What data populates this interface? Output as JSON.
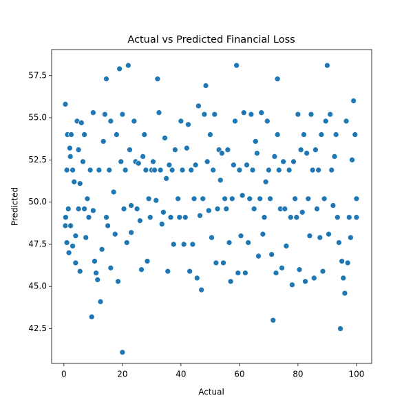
{
  "chart_data": {
    "type": "scatter",
    "title": "Actual vs Predicted Financial Loss",
    "x_label": "Actual",
    "y_label": "Predicted",
    "color": "#1f77b4",
    "xlim": [
      -4.2,
      105.2
    ],
    "ylim": [
      40.44,
      59.04
    ],
    "xticks": [
      0,
      20,
      40,
      60,
      80,
      100
    ],
    "yticks": [
      42.5,
      {
        "value": 45,
        "label": "45.0"
      },
      47.5,
      {
        "value": 50,
        "label": "50.0"
      },
      52.5,
      {
        "value": 55,
        "label": "55.0"
      },
      57.5
    ],
    "x": [
      0.5,
      0.5,
      0.6,
      1,
      1,
      1.2,
      1.5,
      1.7,
      2,
      2.2,
      2.3,
      2.5,
      3,
      3,
      3.5,
      4,
      4,
      4.5,
      5,
      5,
      5.5,
      5.5,
      6,
      6.5,
      7,
      7,
      7.5,
      8,
      8.5,
      9,
      9.5,
      10,
      10,
      10.5,
      11,
      11.5,
      12,
      12.5,
      13,
      13.5,
      14,
      14.5,
      14.5,
      15,
      15.5,
      16,
      16,
      17,
      17.5,
      18,
      18.5,
      19,
      19.5,
      20,
      20,
      20.5,
      21,
      21.5,
      22,
      22.5,
      23,
      23,
      24,
      24.5,
      25,
      25.5,
      26,
      26.5,
      27,
      27.5,
      28,
      28.5,
      29,
      29.5,
      30,
      30.5,
      31,
      31.5,
      32,
      32.5,
      33,
      33.5,
      34,
      34.5,
      35,
      35.5,
      36,
      36.5,
      37,
      37.5,
      38,
      39,
      39.5,
      40,
      40.5,
      41,
      41.5,
      42,
      42.5,
      43,
      43.5,
      44,
      44.5,
      45,
      45.5,
      46,
      46.5,
      47,
      47.5,
      48,
      48.5,
      49,
      49.5,
      50,
      50.5,
      51,
      51.5,
      52,
      52.5,
      53,
      53.5,
      54,
      54.5,
      55,
      55.5,
      56,
      56.5,
      57,
      57.5,
      58,
      58.5,
      59,
      59.5,
      60,
      60.5,
      61,
      61.5,
      62,
      62.5,
      63,
      63.5,
      64,
      64.5,
      65,
      65.5,
      66,
      66.5,
      67,
      67.5,
      68,
      68.5,
      69,
      69.5,
      70,
      70.5,
      71,
      71.5,
      72,
      72.5,
      73,
      73,
      73.5,
      74,
      74.5,
      75,
      75.5,
      76,
      77,
      77.5,
      78,
      78.5,
      79,
      79.5,
      80,
      80.5,
      81,
      81.5,
      82,
      82.5,
      83,
      83.5,
      84,
      84.5,
      85,
      85.5,
      86,
      86.5,
      87,
      87.5,
      88,
      88.5,
      89,
      89.5,
      90,
      90.5,
      91,
      91.5,
      92,
      92.5,
      93,
      93.5,
      94,
      94.5,
      95,
      95.5,
      96,
      96.5,
      97,
      97.5,
      98,
      98.5,
      99,
      99.5,
      100,
      100
    ],
    "y": [
      55.8,
      48.6,
      49.1,
      51.9,
      47.6,
      54.0,
      49.6,
      47.0,
      53.2,
      52.7,
      48.6,
      54.0,
      51.9,
      47.4,
      51.2,
      48.0,
      46.4,
      54.8,
      53.1,
      49.6,
      51.1,
      45.9,
      54.7,
      52.4,
      49.6,
      54.0,
      47.9,
      50.2,
      49.1,
      51.9,
      43.2,
      49.5,
      55.3,
      46.5,
      45.8,
      45.4,
      51.9,
      44.1,
      47.2,
      53.6,
      55.2,
      57.3,
      49.1,
      48.6,
      51.9,
      54.8,
      46.1,
      50.6,
      48.1,
      54.0,
      45.3,
      57.9,
      52.4,
      41.1,
      55.2,
      49.6,
      51.9,
      47.6,
      58.1,
      53.1,
      48.2,
      49.8,
      54.8,
      52.4,
      49.6,
      52.3,
      48.9,
      46.0,
      52.7,
      54.0,
      51.9,
      46.5,
      50.2,
      49.1,
      51.9,
      52.4,
      51.9,
      50.1,
      57.3,
      55.3,
      51.9,
      48.7,
      49.4,
      53.8,
      51.4,
      45.9,
      52.2,
      49.1,
      51.9,
      47.5,
      53.1,
      50.2,
      49.1,
      54.8,
      51.9,
      47.5,
      49.1,
      53.2,
      54.6,
      45.9,
      51.9,
      47.5,
      50.2,
      52.2,
      45.5,
      55.7,
      49.2,
      44.8,
      50.2,
      55.2,
      56.9,
      52.4,
      49.5,
      54.0,
      47.9,
      51.9,
      55.2,
      46.4,
      49.6,
      53.1,
      51.3,
      52.9,
      46.4,
      50.2,
      49.6,
      53.1,
      47.6,
      45.3,
      50.2,
      52.2,
      54.8,
      58.1,
      45.8,
      51.9,
      48.0,
      50.4,
      55.3,
      45.8,
      52.2,
      47.6,
      50.2,
      55.2,
      51.9,
      49.6,
      53.6,
      52.9,
      46.8,
      50.2,
      55.3,
      48.1,
      49.1,
      51.2,
      54.8,
      51.9,
      50.2,
      46.9,
      43.0,
      52.7,
      45.8,
      57.3,
      54.0,
      51.9,
      49.6,
      46.1,
      52.4,
      49.6,
      47.4,
      51.9,
      49.1,
      45.1,
      52.4,
      50.2,
      49.1,
      55.2,
      46.0,
      53.1,
      49.4,
      54.0,
      45.3,
      52.9,
      50.2,
      48.0,
      55.2,
      51.9,
      45.5,
      53.1,
      49.6,
      51.9,
      47.9,
      54.0,
      45.9,
      50.2,
      54.8,
      58.1,
      48.1,
      55.2,
      51.9,
      49.8,
      52.7,
      54.0,
      49.1,
      47.6,
      42.5,
      46.5,
      45.5,
      44.6,
      54.8,
      46.4,
      49.1,
      47.9,
      52.5,
      56.0,
      54.0,
      50.2,
      49.1
    ]
  }
}
